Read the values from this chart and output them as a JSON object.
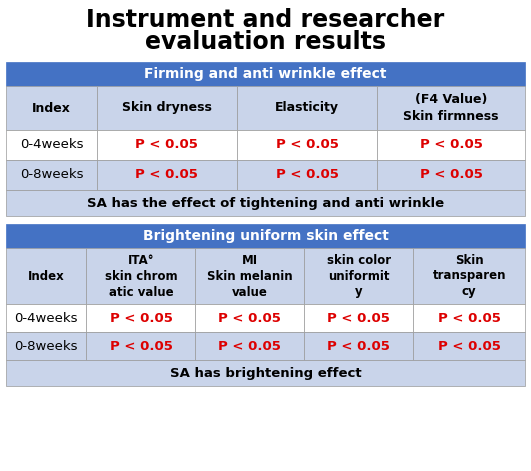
{
  "title_line1": "Instrument and researcher",
  "title_line2": "evaluation results",
  "title_fontsize": 17,
  "title_color": "#000000",
  "table1_header": "Firming and anti wrinkle effect",
  "table1_header_bg": "#4472C4",
  "table1_header_fg": "#FFFFFF",
  "table1_cols": [
    "Index",
    "Skin dryness",
    "Elasticity",
    "(F4 Value)\nSkin firmness"
  ],
  "table1_rows": [
    [
      "0-4weeks",
      "P < 0.05",
      "P < 0.05",
      "P < 0.05"
    ],
    [
      "0-8weeks",
      "P < 0.05",
      "P < 0.05",
      "P < 0.05"
    ]
  ],
  "table1_footer": "SA has the effect of tightening and anti wrinkle",
  "table1_col_header_bg": "#C9D4EA",
  "table1_row0_bg": "#FFFFFF",
  "table1_row1_bg": "#C9D4EA",
  "table1_footer_bg": "#C9D4EA",
  "table2_header": "Brightening uniform skin effect",
  "table2_header_bg": "#4472C4",
  "table2_header_fg": "#FFFFFF",
  "table2_cols": [
    "Index",
    "ITA°\nskin chrom\natic value",
    "MI\nSkin melanin\nvalue",
    "skin color\nuniformit\ny",
    "Skin\ntransparen\ncy"
  ],
  "table2_rows": [
    [
      "0-4weeks",
      "P < 0.05",
      "P < 0.05",
      "P < 0.05",
      "P < 0.05"
    ],
    [
      "0-8weeks",
      "P < 0.05",
      "P < 0.05",
      "P < 0.05",
      "P < 0.05"
    ]
  ],
  "table2_footer": "SA has brightening effect",
  "table2_col_header_bg": "#C9D4EA",
  "table2_row0_bg": "#FFFFFF",
  "table2_row1_bg": "#C9D4EA",
  "table2_footer_bg": "#C9D4EA",
  "p_value_color": "#DD0000",
  "index_color": "#000000",
  "header_col_color": "#000000",
  "footer_color": "#000000",
  "border_color": "#999999",
  "bg_color": "#FFFFFF",
  "fig_w": 5.31,
  "fig_h": 4.71,
  "dpi": 100
}
